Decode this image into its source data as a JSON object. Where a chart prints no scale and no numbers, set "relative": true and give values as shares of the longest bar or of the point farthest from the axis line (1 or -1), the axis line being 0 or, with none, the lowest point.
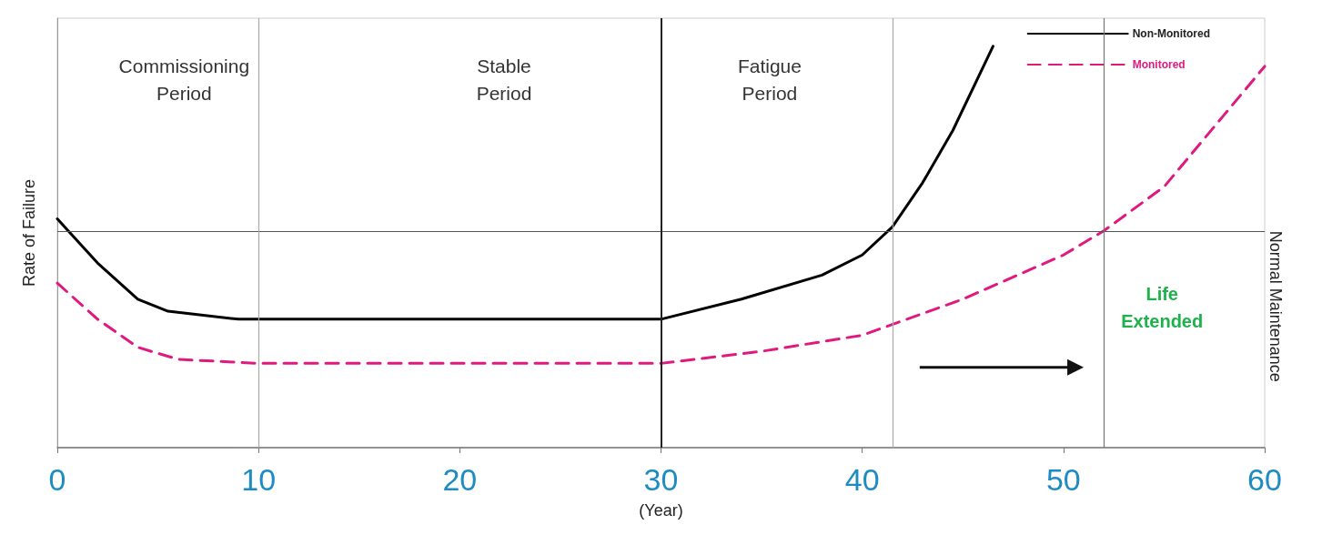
{
  "chart_data": {
    "type": "line",
    "relative": true,
    "xlabel": "(Year)",
    "ylabel": "Rate of Failure",
    "xlim": [
      0,
      60
    ],
    "xticks": [
      0,
      10,
      20,
      30,
      40,
      50,
      60
    ],
    "grid": false,
    "legend": "top right",
    "series": [
      {
        "name": "Non-Monitored",
        "color": "#000000",
        "line_style": "solid",
        "x": [
          0,
          2,
          4,
          5.5,
          9,
          30,
          34,
          38,
          40,
          41.5,
          43,
          44.5,
          46.5
        ],
        "values": [
          0.57,
          0.46,
          0.37,
          0.34,
          0.32,
          0.32,
          0.37,
          0.43,
          0.48,
          0.55,
          0.66,
          0.79,
          1
        ]
      },
      {
        "name": "Monitored",
        "color": "#e0197f",
        "line_style": "dashed",
        "x": [
          0,
          2,
          4,
          6,
          10,
          30,
          35,
          40,
          45,
          50,
          52,
          55,
          58,
          60
        ],
        "values": [
          0.41,
          0.32,
          0.25,
          0.22,
          0.21,
          0.21,
          0.24,
          0.28,
          0.37,
          0.48,
          0.54,
          0.65,
          0.83,
          0.95
        ]
      }
    ],
    "ref_lines": [
      {
        "axis": "y",
        "value": 0.54,
        "label": "Normal Maintenance",
        "color": "#555555"
      },
      {
        "axis": "x",
        "value": 10,
        "color": "#aaaaaa"
      },
      {
        "axis": "x",
        "value": 30,
        "color": "#222222"
      },
      {
        "axis": "x",
        "value": 41.5,
        "color": "#aaaaaa"
      },
      {
        "axis": "x",
        "value": 52,
        "color": "#777777"
      }
    ],
    "annotations": [
      "Commissioning\nPeriod",
      "Stable\nPeriod",
      "Fatigue\nPeriod",
      "Life\nExtended"
    ]
  }
}
